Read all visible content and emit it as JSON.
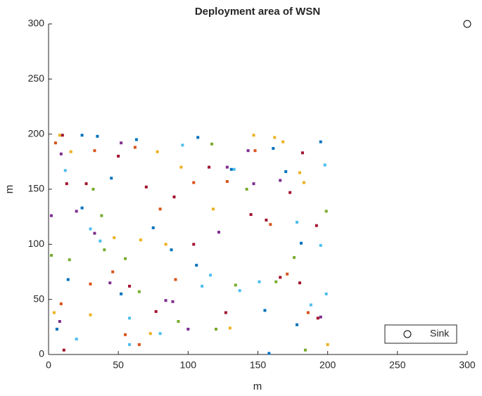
{
  "chart_data": {
    "type": "scatter",
    "title": "Deployment area of WSN",
    "x_label": "m",
    "y_label": "m",
    "xlim": [
      0,
      300
    ],
    "ylim": [
      0,
      300
    ],
    "xticks": [
      0,
      50,
      100,
      150,
      200,
      250,
      300
    ],
    "yticks": [
      0,
      50,
      100,
      150,
      200,
      250,
      300
    ],
    "grid": false,
    "legend_position": "lower right",
    "series": [
      {
        "color": "#0072BD",
        "marker": "square",
        "x": [
          24,
          35,
          63,
          107,
          161,
          170,
          181,
          195,
          131,
          75,
          14,
          6,
          52,
          88,
          155,
          158,
          178,
          106,
          45,
          24
        ],
        "values": [
          199,
          198,
          195,
          197,
          187,
          166,
          101,
          193,
          168,
          115,
          68,
          23,
          55,
          95,
          40,
          1,
          27,
          81,
          160,
          133
        ]
      },
      {
        "color": "#D95319",
        "marker": "square",
        "x": [
          5,
          33,
          62,
          80,
          104,
          148,
          159,
          171,
          46,
          30,
          9,
          186,
          128,
          91,
          65,
          55
        ],
        "values": [
          192,
          185,
          188,
          132,
          156,
          185,
          118,
          73,
          75,
          64,
          46,
          38,
          157,
          68,
          9,
          18
        ]
      },
      {
        "color": "#EDB120",
        "marker": "square",
        "x": [
          8,
          16,
          78,
          95,
          147,
          162,
          168,
          180,
          183,
          84,
          66,
          4,
          30,
          73,
          47,
          118,
          200,
          130
        ],
        "values": [
          199,
          184,
          184,
          170,
          199,
          197,
          193,
          165,
          156,
          100,
          104,
          38,
          36,
          19,
          106,
          132,
          9,
          24
        ]
      },
      {
        "color": "#7E2F8E",
        "marker": "square",
        "x": [
          9,
          33,
          20,
          52,
          147,
          143,
          2,
          44,
          89,
          100,
          128,
          166,
          195,
          122,
          8,
          84
        ],
        "values": [
          182,
          110,
          130,
          192,
          155,
          185,
          126,
          65,
          48,
          23,
          170,
          158,
          34,
          111,
          30,
          49
        ]
      },
      {
        "color": "#77AC30",
        "marker": "square",
        "x": [
          15,
          32,
          38,
          65,
          117,
          142,
          163,
          184,
          199,
          2,
          55,
          120,
          93,
          40,
          176,
          134
        ],
        "values": [
          86,
          150,
          126,
          57,
          191,
          150,
          66,
          4,
          130,
          90,
          87,
          23,
          30,
          95,
          88,
          63
        ]
      },
      {
        "color": "#4DBEEE",
        "marker": "square",
        "x": [
          12,
          30,
          37,
          96,
          133,
          198,
          195,
          188,
          199,
          58,
          20,
          80,
          110,
          137,
          151,
          178,
          116,
          58
        ],
        "values": [
          167,
          114,
          103,
          190,
          168,
          172,
          99,
          45,
          55,
          33,
          14,
          19,
          62,
          58,
          66,
          120,
          72,
          9
        ]
      },
      {
        "color": "#A2142F",
        "marker": "square",
        "x": [
          10,
          13,
          27,
          50,
          70,
          90,
          115,
          145,
          156,
          173,
          182,
          192,
          11,
          58,
          77,
          127,
          166,
          193,
          104,
          180
        ],
        "values": [
          199,
          155,
          155,
          180,
          152,
          143,
          170,
          127,
          122,
          147,
          183,
          117,
          4,
          62,
          39,
          38,
          70,
          33,
          100,
          65
        ]
      },
      {
        "name": "Sink",
        "color": "#000000",
        "marker": "circle",
        "x": [
          300
        ],
        "values": [
          300
        ]
      }
    ]
  }
}
